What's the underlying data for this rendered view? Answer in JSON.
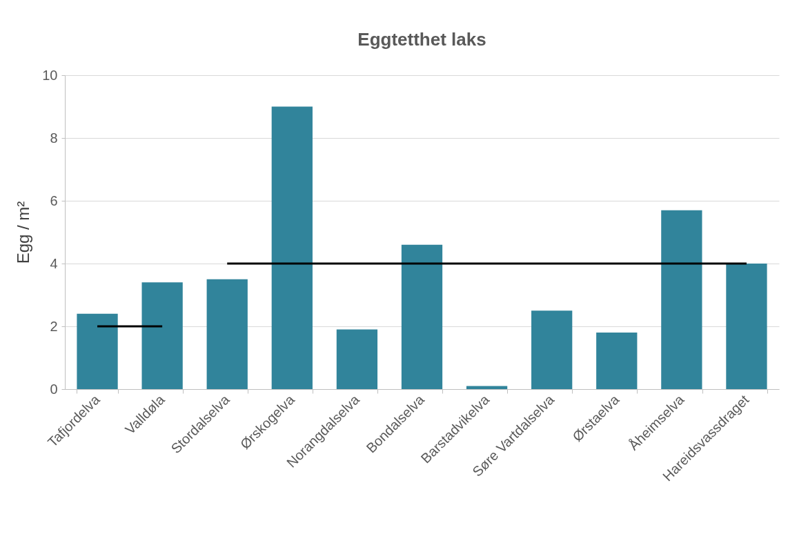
{
  "chart_data": {
    "type": "bar",
    "title": "Eggtetthet laks",
    "ylabel": "Egg / m²",
    "categories": [
      "Tafjordelva",
      "Valldøla",
      "Stordalselva",
      "Ørskogelva",
      "Norangdalselva",
      "Bondalselva",
      "Barstadvikelva",
      "Søre Vartdalselva",
      "Ørstaelva",
      "Åheimselva",
      "Hareidsvassdraget"
    ],
    "series": [
      {
        "color": "#31849b",
        "values": [
          2.4,
          3.4,
          3.5,
          9.0,
          1.9,
          4.6,
          0.1,
          2.5,
          1.8,
          5.7,
          4.0
        ]
      },
      {
        "type": "line",
        "color": "#000000",
        "values": [
          2,
          2,
          null,
          null,
          null,
          null,
          null,
          null,
          null,
          null,
          null
        ]
      },
      {
        "type": "line",
        "color": "#000000",
        "values": [
          null,
          null,
          4,
          4,
          4,
          4,
          4,
          4,
          4,
          4,
          4
        ]
      }
    ],
    "ylim": [
      0,
      10
    ],
    "yticks": [
      0,
      2,
      4,
      6,
      8,
      10
    ],
    "grid": "y",
    "marker": "none",
    "line_style": "solid"
  }
}
